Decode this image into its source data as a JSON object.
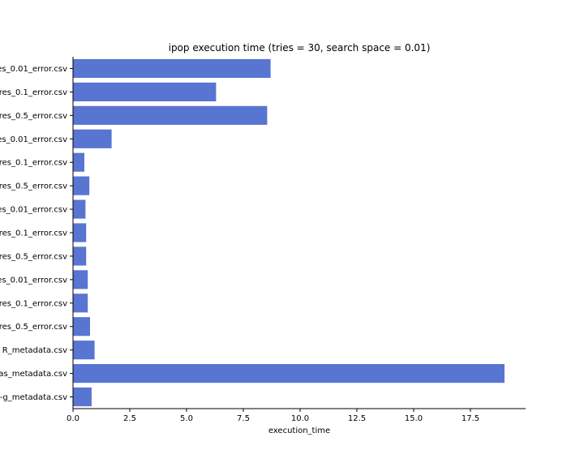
{
  "chart_data": {
    "type": "bar",
    "orientation": "horizontal",
    "title": "ipop execution time (tries = 30, search space = 0.01)",
    "xlabel": "execution_time",
    "ylabel": "",
    "xlim": [
      0,
      20
    ],
    "xticks": [
      0.0,
      2.5,
      5.0,
      7.5,
      10.0,
      12.5,
      15.0,
      17.5
    ],
    "xtick_labels": [
      "0.0",
      "2.5",
      "5.0",
      "7.5",
      "10.0",
      "12.5",
      "15.0",
      "17.5"
    ],
    "categories": [
      "es_0.01_error.csv",
      "res_0.1_error.csv",
      "res_0.5_error.csv",
      "es_0.01_error.csv",
      "res_0.1_error.csv",
      "res_0.5_error.csv",
      "es_0.01_error.csv",
      "res_0.1_error.csv",
      "res_0.5_error.csv",
      "es_0.01_error.csv",
      "res_0.1_error.csv",
      "res_0.5_error.csv",
      "R_metadata.csv",
      "as_metadata.csv",
      "-g_metadata.csv"
    ],
    "values": [
      8.7,
      6.3,
      8.55,
      1.7,
      0.5,
      0.72,
      0.55,
      0.58,
      0.58,
      0.65,
      0.65,
      0.75,
      0.95,
      19.0,
      0.82
    ],
    "grid": false,
    "legend": "none",
    "colors": {
      "bar": "#5875d1",
      "axis": "#000000"
    }
  }
}
